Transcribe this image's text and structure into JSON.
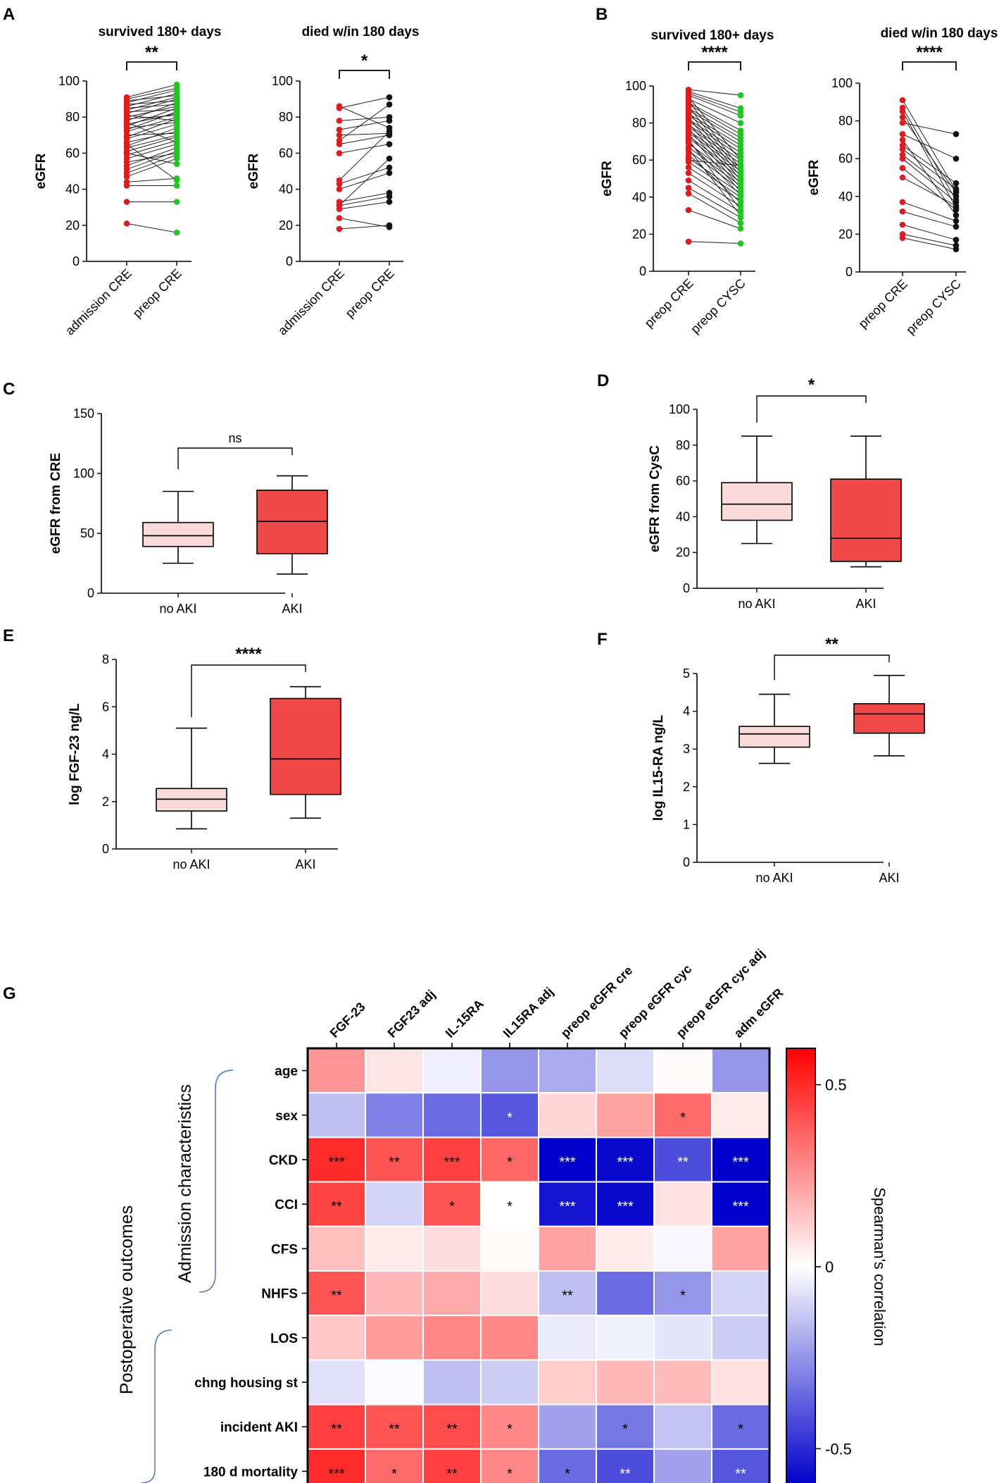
{
  "panels": {
    "A": {
      "letter": "A",
      "plots": [
        {
          "title": "survived 180+ days",
          "ylabel": "eGFR",
          "sig": "**",
          "ylim": [
            0,
            100
          ],
          "yticks": [
            "0",
            "20",
            "40",
            "60",
            "80",
            "100"
          ],
          "xlabels": [
            "admission CRE",
            "preop CRE"
          ],
          "colors": [
            "#e31a1c",
            "#1dc81d"
          ],
          "pairs": [
            [
              21,
              16
            ],
            [
              33,
              33
            ],
            [
              42,
              42
            ],
            [
              44,
              46
            ],
            [
              47,
              57
            ],
            [
              49,
              59
            ],
            [
              51,
              61
            ],
            [
              53,
              63
            ],
            [
              55,
              60
            ],
            [
              57,
              65
            ],
            [
              59,
              67
            ],
            [
              61,
              69
            ],
            [
              63,
              70
            ],
            [
              64,
              74
            ],
            [
              66,
              72
            ],
            [
              68,
              76
            ],
            [
              69,
              79
            ],
            [
              70,
              71
            ],
            [
              72,
              80
            ],
            [
              73,
              83
            ],
            [
              74,
              77
            ],
            [
              75,
              85
            ],
            [
              76,
              82
            ],
            [
              78,
              88
            ],
            [
              79,
              81
            ],
            [
              80,
              86
            ],
            [
              81,
              78
            ],
            [
              82,
              90
            ],
            [
              83,
              84
            ],
            [
              84,
              91
            ],
            [
              85,
              87
            ],
            [
              86,
              93
            ],
            [
              87,
              89
            ],
            [
              88,
              95
            ],
            [
              89,
              92
            ],
            [
              90,
              96
            ],
            [
              91,
              98
            ],
            [
              65,
              45
            ],
            [
              60,
              54
            ],
            [
              77,
              66
            ]
          ]
        },
        {
          "title": "died w/in 180 days",
          "ylabel": "eGFR",
          "sig": "*",
          "ylim": [
            0,
            100
          ],
          "yticks": [
            "0",
            "20",
            "40",
            "60",
            "80",
            "100"
          ],
          "xlabels": [
            "admission CRE",
            "preop CRE"
          ],
          "colors": [
            "#e31a1c",
            "#111111"
          ],
          "pairs": [
            [
              18,
              20
            ],
            [
              24,
              19
            ],
            [
              29,
              33
            ],
            [
              31,
              36
            ],
            [
              33,
              38
            ],
            [
              40,
              49
            ],
            [
              43,
              52
            ],
            [
              45,
              72
            ],
            [
              60,
              65
            ],
            [
              65,
              70
            ],
            [
              70,
              71
            ],
            [
              73,
              78
            ],
            [
              78,
              80
            ],
            [
              86,
              74
            ],
            [
              85,
              91
            ],
            [
              67,
              87
            ],
            [
              31,
              57
            ]
          ]
        }
      ]
    },
    "B": {
      "letter": "B",
      "plots": [
        {
          "title": "survived 180+ days",
          "ylabel": "eGFR",
          "sig": "****",
          "ylim": [
            0,
            100
          ],
          "yticks": [
            "0",
            "20",
            "40",
            "60",
            "80",
            "100"
          ],
          "xlabels": [
            "preop CRE",
            "preop CYSC"
          ],
          "colors": [
            "#e31a1c",
            "#1dc81d"
          ],
          "pairs": [
            [
              16,
              15
            ],
            [
              33,
              23
            ],
            [
              42,
              26
            ],
            [
              45,
              29
            ],
            [
              49,
              32
            ],
            [
              53,
              35
            ],
            [
              56,
              38
            ],
            [
              59,
              40
            ],
            [
              61,
              42
            ],
            [
              63,
              37
            ],
            [
              65,
              44
            ],
            [
              67,
              46
            ],
            [
              69,
              48
            ],
            [
              70,
              41
            ],
            [
              72,
              50
            ],
            [
              73,
              52
            ],
            [
              74,
              43
            ],
            [
              75,
              54
            ],
            [
              76,
              56
            ],
            [
              77,
              45
            ],
            [
              78,
              58
            ],
            [
              79,
              60
            ],
            [
              80,
              47
            ],
            [
              81,
              62
            ],
            [
              82,
              64
            ],
            [
              83,
              49
            ],
            [
              84,
              66
            ],
            [
              85,
              68
            ],
            [
              86,
              51
            ],
            [
              87,
              70
            ],
            [
              88,
              72
            ],
            [
              89,
              53
            ],
            [
              90,
              74
            ],
            [
              91,
              76
            ],
            [
              92,
              55
            ],
            [
              93,
              80
            ],
            [
              95,
              84
            ],
            [
              96,
              86
            ],
            [
              97,
              88
            ],
            [
              98,
              95
            ],
            [
              71,
              33
            ],
            [
              66,
              30
            ],
            [
              94,
              60
            ],
            [
              60,
              57
            ]
          ]
        },
        {
          "title": "died w/in 180 days",
          "ylabel": "eGFR",
          "sig": "****",
          "ylim": [
            0,
            100
          ],
          "yticks": [
            "0",
            "20",
            "40",
            "60",
            "80",
            "100"
          ],
          "xlabels": [
            "preop CRE",
            "preop CYSC"
          ],
          "colors": [
            "#e31a1c",
            "#111111"
          ],
          "pairs": [
            [
              18,
              12
            ],
            [
              20,
              14
            ],
            [
              25,
              17
            ],
            [
              32,
              24
            ],
            [
              37,
              27
            ],
            [
              50,
              35
            ],
            [
              55,
              33
            ],
            [
              60,
              37
            ],
            [
              62,
              40
            ],
            [
              65,
              44
            ],
            [
              67,
              47
            ],
            [
              70,
              30
            ],
            [
              73,
              60
            ],
            [
              79,
              73
            ],
            [
              82,
              42
            ],
            [
              87,
              38
            ],
            [
              91,
              43
            ],
            [
              85,
              34
            ]
          ]
        }
      ]
    },
    "C": {
      "letter": "C",
      "ylabel": "eGFR from CRE",
      "sig": "ns",
      "ylim": [
        0,
        150
      ],
      "yticks": [
        "0",
        "50",
        "100",
        "150"
      ],
      "groups": [
        "no AKI",
        "AKI"
      ],
      "boxes": [
        {
          "min": 25,
          "q1": 39,
          "median": 48,
          "q3": 59,
          "max": 85,
          "fill": "#fbdada"
        },
        {
          "min": 16,
          "q1": 33,
          "median": 60,
          "q3": 86,
          "max": 98,
          "fill": "#f04848"
        }
      ]
    },
    "D": {
      "letter": "D",
      "ylabel": "eGFR from CysC",
      "sig": "*",
      "ylim": [
        0,
        100
      ],
      "yticks": [
        "0",
        "20",
        "40",
        "60",
        "80",
        "100"
      ],
      "groups": [
        "no AKI",
        "AKI"
      ],
      "boxes": [
        {
          "min": 25,
          "q1": 38,
          "median": 47,
          "q3": 59,
          "max": 85,
          "fill": "#fbdada"
        },
        {
          "min": 12,
          "q1": 15,
          "median": 28,
          "q3": 61,
          "max": 85,
          "fill": "#f04848"
        }
      ]
    },
    "E": {
      "letter": "E",
      "ylabel": "log FGF-23 ng/L",
      "sig": "****",
      "ylim": [
        0,
        8
      ],
      "yticks": [
        "0",
        "2",
        "4",
        "6",
        "8"
      ],
      "groups": [
        "no AKI",
        "AKI"
      ],
      "boxes": [
        {
          "min": 0.85,
          "q1": 1.6,
          "median": 2.1,
          "q3": 2.55,
          "max": 5.1,
          "fill": "#fbdada"
        },
        {
          "min": 1.3,
          "q1": 2.3,
          "median": 3.8,
          "q3": 6.35,
          "max": 6.85,
          "fill": "#f04848"
        }
      ]
    },
    "F": {
      "letter": "F",
      "ylabel": "log IL15-RA ng/L",
      "sig": "**",
      "ylim": [
        0,
        5
      ],
      "yticks": [
        "0",
        "1",
        "2",
        "3",
        "4",
        "5"
      ],
      "groups": [
        "no AKI",
        "AKI"
      ],
      "boxes": [
        {
          "min": 2.62,
          "q1": 3.05,
          "median": 3.4,
          "q3": 3.6,
          "max": 4.45,
          "fill": "#fbdada"
        },
        {
          "min": 2.82,
          "q1": 3.42,
          "median": 3.93,
          "q3": 4.2,
          "max": 4.95,
          "fill": "#f04848"
        }
      ]
    },
    "G": {
      "letter": "G",
      "columns": [
        "FGF-23",
        "FGF23 adj",
        "IL-15RA",
        "IL15RA adj",
        "preop eGFR cre",
        "preop eGFR cyc",
        "preop eGFR cyc adj",
        "adm eGFR"
      ],
      "rows": [
        "age",
        "sex",
        "CKD",
        "CCI",
        "CFS",
        "NHFS",
        "LOS",
        "chng housing st",
        "incident AKI",
        "180 d mortality"
      ],
      "values": [
        [
          0.25,
          0.06,
          -0.04,
          -0.25,
          -0.2,
          -0.08,
          0.01,
          -0.25
        ],
        [
          -0.15,
          -0.3,
          -0.35,
          -0.4,
          0.1,
          0.22,
          0.35,
          0.05
        ],
        [
          0.5,
          0.4,
          0.45,
          0.36,
          -0.6,
          -0.58,
          -0.42,
          -0.6
        ],
        [
          0.44,
          -0.1,
          0.4,
          0.0,
          -0.55,
          -0.58,
          0.07,
          -0.6
        ],
        [
          0.15,
          0.05,
          0.08,
          0.01,
          0.22,
          0.05,
          -0.02,
          0.22
        ],
        [
          0.4,
          0.17,
          0.2,
          0.08,
          -0.15,
          -0.35,
          -0.25,
          -0.1
        ],
        [
          0.13,
          0.23,
          0.28,
          0.28,
          -0.05,
          -0.03,
          -0.06,
          -0.12
        ],
        [
          -0.07,
          -0.01,
          -0.15,
          -0.12,
          0.12,
          0.17,
          0.16,
          0.07
        ],
        [
          0.45,
          0.4,
          0.42,
          0.28,
          -0.22,
          -0.32,
          -0.14,
          -0.35
        ],
        [
          0.5,
          0.35,
          0.45,
          0.28,
          -0.35,
          -0.42,
          -0.22,
          -0.4
        ]
      ],
      "stars": [
        [
          "",
          "",
          "",
          "",
          "",
          "",
          "",
          ""
        ],
        [
          "",
          "",
          "",
          "*",
          "",
          "",
          "*",
          ""
        ],
        [
          "***",
          "**",
          "***",
          "*",
          "***",
          "***",
          "**",
          "***"
        ],
        [
          "**",
          "",
          "*",
          "*",
          "***",
          "***",
          "",
          "***"
        ],
        [
          "",
          "",
          "",
          "",
          "",
          "",
          "",
          ""
        ],
        [
          "**",
          "",
          "",
          "",
          "**",
          "",
          "*",
          ""
        ],
        [
          "",
          "",
          "",
          "",
          "",
          "",
          "",
          ""
        ],
        [
          "",
          "",
          "",
          "",
          "",
          "",
          "",
          ""
        ],
        [
          "**",
          "**",
          "**",
          "*",
          "",
          "*",
          "",
          "*"
        ],
        [
          "***",
          "*",
          "**",
          "*",
          "*",
          "**",
          "",
          "**"
        ]
      ],
      "group_labels": [
        "Admission characteristics",
        "Postoperative outcomes"
      ],
      "colorbar": {
        "label": "Spearman's correlation",
        "ticks": [
          "0.5",
          "0",
          "-0.5"
        ],
        "max": 0.6,
        "min": -0.6
      },
      "colors": {
        "positive": "#ff0000",
        "neutral": "#ffffff",
        "negative": "#0000cc"
      }
    }
  },
  "chart_data": [
    {
      "type": "line",
      "title": "survived 180+ days (A)",
      "categories": [
        "admission CRE",
        "preop CRE"
      ],
      "ylabel": "eGFR",
      "ylim": [
        0,
        100
      ]
    },
    {
      "type": "line",
      "title": "died w/in 180 days (A)",
      "categories": [
        "admission CRE",
        "preop CRE"
      ],
      "ylabel": "eGFR",
      "ylim": [
        0,
        100
      ]
    },
    {
      "type": "line",
      "title": "survived 180+ days (B)",
      "categories": [
        "preop CRE",
        "preop CYSC"
      ],
      "ylabel": "eGFR",
      "ylim": [
        0,
        100
      ]
    },
    {
      "type": "line",
      "title": "died w/in 180 days (B)",
      "categories": [
        "preop CRE",
        "preop CYSC"
      ],
      "ylabel": "eGFR",
      "ylim": [
        0,
        100
      ]
    },
    {
      "type": "box",
      "title": "C",
      "categories": [
        "no AKI",
        "AKI"
      ],
      "ylabel": "eGFR from CRE",
      "ylim": [
        0,
        150
      ]
    },
    {
      "type": "box",
      "title": "D",
      "categories": [
        "no AKI",
        "AKI"
      ],
      "ylabel": "eGFR from CysC",
      "ylim": [
        0,
        100
      ]
    },
    {
      "type": "box",
      "title": "E",
      "categories": [
        "no AKI",
        "AKI"
      ],
      "ylabel": "log FGF-23 ng/L",
      "ylim": [
        0,
        8
      ]
    },
    {
      "type": "box",
      "title": "F",
      "categories": [
        "no AKI",
        "AKI"
      ],
      "ylabel": "log IL15-RA ng/L",
      "ylim": [
        0,
        5
      ]
    },
    {
      "type": "heatmap",
      "title": "G",
      "xlabel": "",
      "ylabel": "",
      "colorbar_label": "Spearman's correlation",
      "ylim": [
        -0.6,
        0.6
      ]
    }
  ]
}
